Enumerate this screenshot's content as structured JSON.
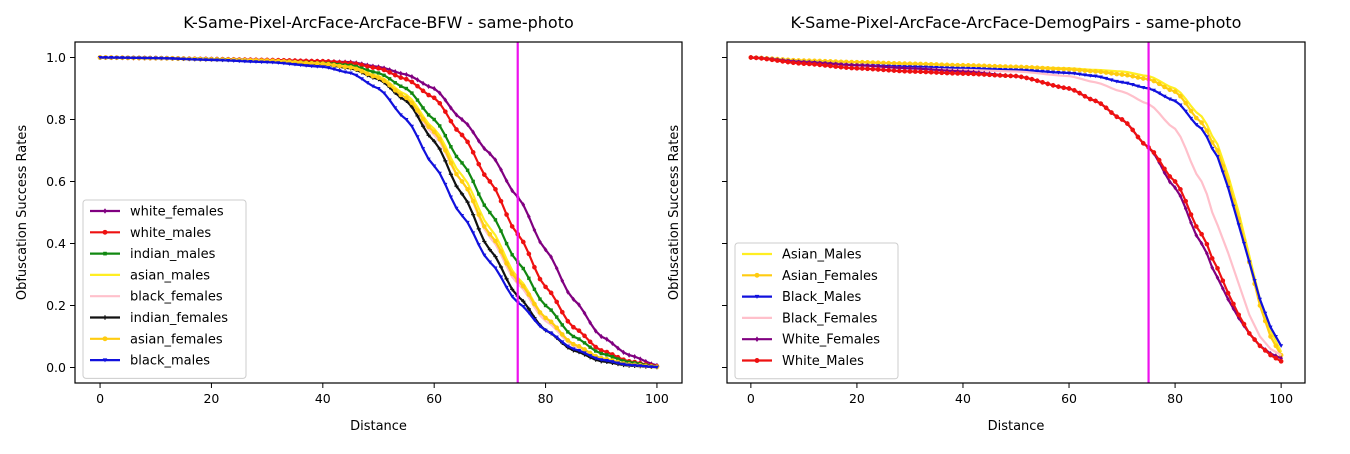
{
  "chart_data": [
    {
      "type": "line",
      "title": "K-Same-Pixel-ArcFace-ArcFace-BFW - same-photo",
      "xlabel": "Distance",
      "ylabel": "Obfuscation Success Rates",
      "xlim": [
        -4.5,
        104.5
      ],
      "ylim": [
        -0.05,
        1.05
      ],
      "xticks": [
        0,
        20,
        40,
        60,
        80,
        100
      ],
      "xtick_labels": [
        "0",
        "20",
        "40",
        "60",
        "80",
        "100"
      ],
      "yticks": [
        0.0,
        0.2,
        0.4,
        0.6,
        0.8,
        1.0
      ],
      "ytick_labels": [
        "0.0",
        "0.2",
        "0.4",
        "0.6",
        "0.8",
        "1.0"
      ],
      "vline": {
        "x": 75,
        "color": "#ee11ee"
      },
      "legend_position": "lower-left",
      "grid": false,
      "series": [
        {
          "name": "white_females",
          "color": "#800080",
          "marker": "diamond",
          "x": [
            0,
            10,
            20,
            30,
            40,
            45,
            50,
            55,
            60,
            65,
            70,
            75,
            80,
            85,
            90,
            95,
            100
          ],
          "values": [
            1.0,
            0.998,
            0.995,
            0.992,
            0.988,
            0.985,
            0.97,
            0.945,
            0.9,
            0.8,
            0.69,
            0.55,
            0.38,
            0.22,
            0.1,
            0.04,
            0.007
          ]
        },
        {
          "name": "white_males",
          "color": "#ee1111",
          "marker": "circle",
          "x": [
            0,
            10,
            20,
            30,
            40,
            45,
            50,
            55,
            60,
            65,
            70,
            75,
            80,
            85,
            90,
            95,
            100
          ],
          "values": [
            1.0,
            0.998,
            0.995,
            0.992,
            0.988,
            0.982,
            0.965,
            0.93,
            0.87,
            0.75,
            0.6,
            0.43,
            0.26,
            0.13,
            0.055,
            0.02,
            0.004
          ]
        },
        {
          "name": "indian_males",
          "color": "#118811",
          "marker": "square",
          "x": [
            0,
            10,
            20,
            30,
            40,
            45,
            50,
            55,
            60,
            65,
            70,
            75,
            80,
            85,
            90,
            95,
            100
          ],
          "values": [
            1.0,
            0.998,
            0.995,
            0.99,
            0.982,
            0.975,
            0.95,
            0.9,
            0.8,
            0.66,
            0.5,
            0.34,
            0.2,
            0.1,
            0.045,
            0.017,
            0.003
          ]
        },
        {
          "name": "asian_males",
          "color": "#ffee22",
          "marker": "none",
          "x": [
            0,
            10,
            20,
            30,
            40,
            45,
            50,
            55,
            60,
            65,
            70,
            75,
            80,
            85,
            90,
            95,
            100
          ],
          "values": [
            1.0,
            0.998,
            0.994,
            0.99,
            0.98,
            0.97,
            0.94,
            0.88,
            0.77,
            0.62,
            0.45,
            0.29,
            0.16,
            0.075,
            0.03,
            0.01,
            0.002
          ]
        },
        {
          "name": "black_females",
          "color": "#ffc0cb",
          "marker": "none",
          "x": [
            0,
            10,
            20,
            30,
            40,
            45,
            50,
            55,
            60,
            65,
            70,
            75,
            80,
            85,
            90,
            95,
            100
          ],
          "values": [
            1.0,
            0.998,
            0.994,
            0.99,
            0.98,
            0.968,
            0.935,
            0.87,
            0.75,
            0.6,
            0.42,
            0.27,
            0.15,
            0.07,
            0.028,
            0.01,
            0.002
          ]
        },
        {
          "name": "indian_females",
          "color": "#111111",
          "marker": "plus",
          "x": [
            0,
            10,
            20,
            30,
            40,
            45,
            50,
            55,
            60,
            65,
            70,
            75,
            80,
            85,
            90,
            95,
            100
          ],
          "values": [
            1.0,
            0.998,
            0.994,
            0.988,
            0.978,
            0.965,
            0.93,
            0.86,
            0.73,
            0.56,
            0.38,
            0.23,
            0.12,
            0.055,
            0.02,
            0.006,
            0.001
          ]
        },
        {
          "name": "asian_females",
          "color": "#ffcc11",
          "marker": "circle",
          "x": [
            0,
            10,
            20,
            30,
            40,
            45,
            50,
            55,
            60,
            65,
            70,
            75,
            80,
            85,
            90,
            95,
            100
          ],
          "values": [
            1.0,
            0.998,
            0.994,
            0.99,
            0.98,
            0.968,
            0.935,
            0.87,
            0.76,
            0.6,
            0.43,
            0.28,
            0.16,
            0.075,
            0.03,
            0.01,
            0.002
          ]
        },
        {
          "name": "black_males",
          "color": "#1111dd",
          "marker": "triangle-down",
          "x": [
            0,
            10,
            20,
            30,
            40,
            45,
            50,
            55,
            60,
            65,
            70,
            75,
            80,
            85,
            90,
            95,
            100
          ],
          "values": [
            1.0,
            0.998,
            0.992,
            0.985,
            0.97,
            0.95,
            0.9,
            0.8,
            0.65,
            0.49,
            0.34,
            0.21,
            0.12,
            0.06,
            0.025,
            0.008,
            0.001
          ]
        }
      ]
    },
    {
      "type": "line",
      "title": "K-Same-Pixel-ArcFace-ArcFace-DemogPairs - same-photo",
      "xlabel": "Distance",
      "ylabel": "Obfuscation Success Rates",
      "xlim": [
        -4.5,
        104.5
      ],
      "ylim": [
        -0.05,
        1.05
      ],
      "xticks": [
        0,
        20,
        40,
        60,
        80,
        100
      ],
      "xtick_labels": [
        "0",
        "20",
        "40",
        "60",
        "80",
        "100"
      ],
      "yticks": [
        0.0,
        0.2,
        0.4,
        0.6,
        0.8,
        1.0
      ],
      "ytick_labels": [],
      "vline": {
        "x": 75,
        "color": "#ee11ee"
      },
      "legend_position": "lower-left",
      "grid": false,
      "series": [
        {
          "name": "Asian_Males",
          "color": "#ffee22",
          "marker": "none",
          "x": [
            0,
            10,
            20,
            30,
            40,
            50,
            60,
            65,
            70,
            75,
            80,
            85,
            88,
            90,
            92,
            94,
            96,
            98,
            100
          ],
          "values": [
            1.0,
            0.99,
            0.985,
            0.98,
            0.975,
            0.97,
            0.965,
            0.96,
            0.955,
            0.94,
            0.9,
            0.81,
            0.72,
            0.62,
            0.5,
            0.36,
            0.22,
            0.12,
            0.05
          ]
        },
        {
          "name": "Asian_Females",
          "color": "#ffcc11",
          "marker": "circle",
          "x": [
            0,
            10,
            20,
            30,
            40,
            50,
            60,
            65,
            70,
            75,
            80,
            85,
            88,
            90,
            92,
            94,
            96,
            98,
            100
          ],
          "values": [
            1.0,
            0.99,
            0.985,
            0.98,
            0.975,
            0.97,
            0.962,
            0.955,
            0.945,
            0.93,
            0.89,
            0.79,
            0.7,
            0.6,
            0.48,
            0.34,
            0.2,
            0.1,
            0.04
          ]
        },
        {
          "name": "Black_Males",
          "color": "#1111dd",
          "marker": "triangle-down",
          "x": [
            0,
            10,
            20,
            30,
            40,
            50,
            60,
            65,
            70,
            75,
            80,
            85,
            88,
            90,
            92,
            94,
            96,
            98,
            100
          ],
          "values": [
            1.0,
            0.985,
            0.975,
            0.97,
            0.965,
            0.96,
            0.95,
            0.94,
            0.92,
            0.9,
            0.86,
            0.77,
            0.68,
            0.58,
            0.46,
            0.34,
            0.22,
            0.13,
            0.07
          ]
        },
        {
          "name": "Black_Females",
          "color": "#ffc0cb",
          "marker": "none",
          "x": [
            0,
            10,
            20,
            30,
            40,
            50,
            60,
            65,
            70,
            75,
            80,
            85,
            88,
            90,
            92,
            94,
            96,
            98,
            100
          ],
          "values": [
            1.0,
            0.985,
            0.975,
            0.965,
            0.96,
            0.955,
            0.94,
            0.92,
            0.89,
            0.85,
            0.77,
            0.6,
            0.46,
            0.37,
            0.27,
            0.17,
            0.1,
            0.06,
            0.04
          ]
        },
        {
          "name": "White_Females",
          "color": "#800080",
          "marker": "diamond",
          "x": [
            0,
            10,
            20,
            30,
            40,
            50,
            60,
            65,
            70,
            75,
            80,
            85,
            88,
            90,
            92,
            94,
            96,
            98,
            100
          ],
          "values": [
            1.0,
            0.985,
            0.975,
            0.965,
            0.955,
            0.94,
            0.9,
            0.86,
            0.8,
            0.71,
            0.58,
            0.4,
            0.29,
            0.22,
            0.16,
            0.11,
            0.07,
            0.045,
            0.03
          ]
        },
        {
          "name": "White_Males",
          "color": "#ee1111",
          "marker": "circle",
          "x": [
            0,
            10,
            20,
            30,
            40,
            50,
            60,
            65,
            70,
            75,
            80,
            85,
            88,
            90,
            92,
            94,
            96,
            98,
            100
          ],
          "values": [
            1.0,
            0.98,
            0.965,
            0.955,
            0.948,
            0.94,
            0.9,
            0.86,
            0.8,
            0.71,
            0.6,
            0.43,
            0.32,
            0.24,
            0.17,
            0.11,
            0.07,
            0.04,
            0.02
          ]
        }
      ]
    }
  ]
}
